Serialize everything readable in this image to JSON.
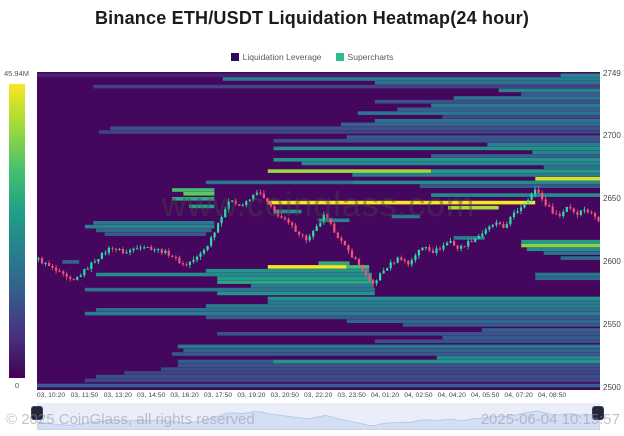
{
  "title": "Binance ETH/USDT Liquidation Heatmap(24 hour)",
  "legend": [
    {
      "label": "Liquidation Leverage",
      "color": "#2f0960"
    },
    {
      "label": "Supercharts",
      "color": "#2ebd85"
    }
  ],
  "colorbar": {
    "max_label": "45.94M",
    "min_label": "0"
  },
  "watermark": "www.coinglass.com",
  "footer": {
    "copyright": "© 2025 CoinGlass, all rights reserved",
    "timestamp": "2025-06-04 10:15:57"
  },
  "chart_data": {
    "type": "heatmap",
    "subtype": "liquidation-heatmap-with-candlesticks",
    "title": "Binance ETH/USDT Liquidation Heatmap(24 hour)",
    "legend": [
      "Liquidation Leverage",
      "Supercharts"
    ],
    "y_axis": {
      "side": "right",
      "min": 2500,
      "max": 2749,
      "ticks": [
        2749,
        2700,
        2650,
        2600,
        2550,
        2500
      ]
    },
    "x_ticks": [
      "03, 10:20",
      "03, 11:50",
      "03, 13:20",
      "03, 14:50",
      "03, 16:20",
      "03, 17:50",
      "03, 19:20",
      "03, 20:50",
      "03, 22:20",
      "03, 23:50",
      "04, 01:20",
      "04, 02:50",
      "04, 04:20",
      "04, 05:50",
      "04, 07:20",
      "04, 08:50"
    ],
    "colorbar": {
      "max_label": "45.94M",
      "min_label": "0"
    },
    "colors": {
      "background": "#45075e",
      "viridis": [
        "#440154",
        "#46327e",
        "#365c8d",
        "#277f8e",
        "#1fa187",
        "#4ac16d",
        "#a0da39",
        "#f8e621"
      ],
      "candle_up": "#2adfa4",
      "candle_down": "#f4537a",
      "nav_fill": "#d5dff4",
      "nav_line": "#bac9ea"
    },
    "candle_count": 160,
    "price_path": [
      [
        0.0,
        2602
      ],
      [
        0.02,
        2596
      ],
      [
        0.045,
        2589
      ],
      [
        0.06,
        2584
      ],
      [
        0.08,
        2592
      ],
      [
        0.1,
        2601
      ],
      [
        0.13,
        2612
      ],
      [
        0.155,
        2607
      ],
      [
        0.18,
        2613
      ],
      [
        0.21,
        2610
      ],
      [
        0.235,
        2606
      ],
      [
        0.26,
        2597
      ],
      [
        0.285,
        2604
      ],
      [
        0.3,
        2612
      ],
      [
        0.315,
        2625
      ],
      [
        0.33,
        2640
      ],
      [
        0.345,
        2650
      ],
      [
        0.36,
        2644
      ],
      [
        0.375,
        2648
      ],
      [
        0.39,
        2656
      ],
      [
        0.405,
        2649
      ],
      [
        0.42,
        2640
      ],
      [
        0.445,
        2631
      ],
      [
        0.465,
        2623
      ],
      [
        0.48,
        2617
      ],
      [
        0.5,
        2629
      ],
      [
        0.51,
        2637
      ],
      [
        0.525,
        2627
      ],
      [
        0.545,
        2613
      ],
      [
        0.565,
        2602
      ],
      [
        0.58,
        2593
      ],
      [
        0.595,
        2581
      ],
      [
        0.61,
        2590
      ],
      [
        0.625,
        2597
      ],
      [
        0.645,
        2604
      ],
      [
        0.66,
        2598
      ],
      [
        0.675,
        2607
      ],
      [
        0.69,
        2613
      ],
      [
        0.705,
        2608
      ],
      [
        0.72,
        2612
      ],
      [
        0.735,
        2617
      ],
      [
        0.75,
        2610
      ],
      [
        0.765,
        2615
      ],
      [
        0.78,
        2619
      ],
      [
        0.8,
        2625
      ],
      [
        0.815,
        2631
      ],
      [
        0.83,
        2627
      ],
      [
        0.845,
        2636
      ],
      [
        0.86,
        2643
      ],
      [
        0.875,
        2651
      ],
      [
        0.89,
        2658
      ],
      [
        0.9,
        2649
      ],
      [
        0.915,
        2641
      ],
      [
        0.93,
        2636
      ],
      [
        0.945,
        2645
      ],
      [
        0.96,
        2638
      ],
      [
        0.975,
        2642
      ],
      [
        1.0,
        2634
      ]
    ],
    "heatmap_rows": [
      {
        "p": 2748,
        "s": 0.0,
        "e": 1.0,
        "v": 0.1
      },
      {
        "p": 2748,
        "s": 0.93,
        "e": 1.0,
        "v": 0.45
      },
      {
        "p": 2745,
        "s": 0.33,
        "e": 1.0,
        "v": 0.42
      },
      {
        "p": 2742,
        "s": 0.6,
        "e": 1.0,
        "v": 0.38
      },
      {
        "p": 2739,
        "s": 0.1,
        "e": 1.0,
        "v": 0.2
      },
      {
        "p": 2736,
        "s": 0.82,
        "e": 1.0,
        "v": 0.45
      },
      {
        "p": 2733,
        "s": 0.86,
        "e": 1.0,
        "v": 0.3
      },
      {
        "p": 2730,
        "s": 0.74,
        "e": 1.0,
        "v": 0.4
      },
      {
        "p": 2727,
        "s": 0.6,
        "e": 1.0,
        "v": 0.25
      },
      {
        "p": 2724,
        "s": 0.7,
        "e": 1.0,
        "v": 0.42
      },
      {
        "p": 2721,
        "s": 0.64,
        "e": 1.0,
        "v": 0.3
      },
      {
        "p": 2718,
        "s": 0.57,
        "e": 1.0,
        "v": 0.4
      },
      {
        "p": 2715,
        "s": 0.72,
        "e": 1.0,
        "v": 0.22
      },
      {
        "p": 2712,
        "s": 0.6,
        "e": 1.0,
        "v": 0.38
      },
      {
        "p": 2709,
        "s": 0.54,
        "e": 1.0,
        "v": 0.32
      },
      {
        "p": 2706,
        "s": 0.13,
        "e": 1.0,
        "v": 0.24
      },
      {
        "p": 2703,
        "s": 0.11,
        "e": 1.0,
        "v": 0.2
      },
      {
        "p": 2699,
        "s": 0.55,
        "e": 1.0,
        "v": 0.28
      },
      {
        "p": 2696,
        "s": 0.42,
        "e": 1.0,
        "v": 0.24
      },
      {
        "p": 2693,
        "s": 0.8,
        "e": 1.0,
        "v": 0.42
      },
      {
        "p": 2690,
        "s": 0.42,
        "e": 1.0,
        "v": 0.5
      },
      {
        "p": 2687,
        "s": 0.88,
        "e": 1.0,
        "v": 0.45
      },
      {
        "p": 2684,
        "s": 0.7,
        "e": 1.0,
        "v": 0.32
      },
      {
        "p": 2681,
        "s": 0.42,
        "e": 1.0,
        "v": 0.52
      },
      {
        "p": 2678,
        "s": 0.47,
        "e": 1.0,
        "v": 0.45
      },
      {
        "p": 2675,
        "s": 0.9,
        "e": 1.0,
        "v": 0.38
      },
      {
        "p": 2672,
        "s": 0.41,
        "e": 0.7,
        "v": 0.85
      },
      {
        "p": 2672,
        "s": 0.7,
        "e": 1.0,
        "v": 0.55
      },
      {
        "p": 2669,
        "s": 0.56,
        "e": 1.0,
        "v": 0.42
      },
      {
        "p": 2666,
        "s": 0.885,
        "e": 1.0,
        "v": 0.95
      },
      {
        "p": 2663,
        "s": 0.3,
        "e": 0.56,
        "v": 0.38
      },
      {
        "p": 2663,
        "s": 0.56,
        "e": 1.0,
        "v": 0.48
      },
      {
        "p": 2660,
        "s": 0.68,
        "e": 1.0,
        "v": 0.28
      },
      {
        "p": 2657,
        "s": 0.24,
        "e": 0.315,
        "v": 0.7
      },
      {
        "p": 2654,
        "s": 0.26,
        "e": 0.315,
        "v": 0.75
      },
      {
        "p": 2653,
        "s": 0.7,
        "e": 1.0,
        "v": 0.48
      },
      {
        "p": 2650,
        "s": 0.24,
        "e": 0.315,
        "v": 0.62
      },
      {
        "p": 2647,
        "s": 0.41,
        "e": 0.885,
        "v": 1.0
      },
      {
        "p": 2644,
        "s": 0.27,
        "e": 0.315,
        "v": 0.58
      },
      {
        "p": 2643,
        "s": 0.73,
        "e": 0.82,
        "v": 0.88
      },
      {
        "p": 2640,
        "s": 0.42,
        "e": 0.47,
        "v": 0.5
      },
      {
        "p": 2636,
        "s": 0.63,
        "e": 0.68,
        "v": 0.4
      },
      {
        "p": 2633,
        "s": 0.5,
        "e": 0.555,
        "v": 0.45
      },
      {
        "p": 2631,
        "s": 0.1,
        "e": 0.315,
        "v": 0.4
      },
      {
        "p": 2628,
        "s": 0.085,
        "e": 0.315,
        "v": 0.45
      },
      {
        "p": 2625,
        "s": 0.105,
        "e": 0.31,
        "v": 0.34
      },
      {
        "p": 2622,
        "s": 0.12,
        "e": 0.3,
        "v": 0.28
      },
      {
        "p": 2619,
        "s": 0.74,
        "e": 0.795,
        "v": 0.42
      },
      {
        "p": 2616,
        "s": 0.86,
        "e": 1.0,
        "v": 0.55
      },
      {
        "p": 2613,
        "s": 0.86,
        "e": 1.0,
        "v": 0.82
      },
      {
        "p": 2610,
        "s": 0.87,
        "e": 1.0,
        "v": 0.48
      },
      {
        "p": 2607,
        "s": 0.9,
        "e": 1.0,
        "v": 0.38
      },
      {
        "p": 2603,
        "s": 0.93,
        "e": 1.0,
        "v": 0.35
      },
      {
        "p": 2600,
        "s": 0.045,
        "e": 0.075,
        "v": 0.32
      },
      {
        "p": 2599,
        "s": 0.5,
        "e": 0.555,
        "v": 0.62
      },
      {
        "p": 2596,
        "s": 0.41,
        "e": 0.55,
        "v": 1.0
      },
      {
        "p": 2596,
        "s": 0.55,
        "e": 0.59,
        "v": 0.7
      },
      {
        "p": 2593,
        "s": 0.3,
        "e": 0.59,
        "v": 0.52
      },
      {
        "p": 2590,
        "s": 0.105,
        "e": 0.595,
        "v": 0.48
      },
      {
        "p": 2590,
        "s": 0.885,
        "e": 1.0,
        "v": 0.4
      },
      {
        "p": 2587,
        "s": 0.32,
        "e": 0.595,
        "v": 0.55
      },
      {
        "p": 2587,
        "s": 0.885,
        "e": 1.0,
        "v": 0.34
      },
      {
        "p": 2584,
        "s": 0.32,
        "e": 0.597,
        "v": 0.6
      },
      {
        "p": 2581,
        "s": 0.38,
        "e": 0.598,
        "v": 0.42
      },
      {
        "p": 2578,
        "s": 0.085,
        "e": 0.6,
        "v": 0.38
      },
      {
        "p": 2575,
        "s": 0.32,
        "e": 0.6,
        "v": 0.52
      },
      {
        "p": 2571,
        "s": 0.41,
        "e": 1.0,
        "v": 0.5
      },
      {
        "p": 2568,
        "s": 0.41,
        "e": 1.0,
        "v": 0.4
      },
      {
        "p": 2565,
        "s": 0.3,
        "e": 1.0,
        "v": 0.44
      },
      {
        "p": 2562,
        "s": 0.105,
        "e": 1.0,
        "v": 0.36
      },
      {
        "p": 2559,
        "s": 0.085,
        "e": 1.0,
        "v": 0.42
      },
      {
        "p": 2556,
        "s": 0.3,
        "e": 1.0,
        "v": 0.28
      },
      {
        "p": 2553,
        "s": 0.55,
        "e": 1.0,
        "v": 0.33
      },
      {
        "p": 2550,
        "s": 0.65,
        "e": 1.0,
        "v": 0.28
      },
      {
        "p": 2546,
        "s": 0.79,
        "e": 1.0,
        "v": 0.3
      },
      {
        "p": 2543,
        "s": 0.32,
        "e": 1.0,
        "v": 0.26
      },
      {
        "p": 2540,
        "s": 0.72,
        "e": 1.0,
        "v": 0.28
      },
      {
        "p": 2537,
        "s": 0.6,
        "e": 1.0,
        "v": 0.24
      },
      {
        "p": 2533,
        "s": 0.25,
        "e": 1.0,
        "v": 0.4
      },
      {
        "p": 2530,
        "s": 0.26,
        "e": 1.0,
        "v": 0.32
      },
      {
        "p": 2527,
        "s": 0.24,
        "e": 1.0,
        "v": 0.28
      },
      {
        "p": 2524,
        "s": 0.71,
        "e": 1.0,
        "v": 0.45
      },
      {
        "p": 2521,
        "s": 0.25,
        "e": 0.42,
        "v": 0.28
      },
      {
        "p": 2521,
        "s": 0.42,
        "e": 1.0,
        "v": 0.52
      },
      {
        "p": 2518,
        "s": 0.25,
        "e": 1.0,
        "v": 0.26
      },
      {
        "p": 2515,
        "s": 0.22,
        "e": 1.0,
        "v": 0.23
      },
      {
        "p": 2512,
        "s": 0.155,
        "e": 1.0,
        "v": 0.21
      },
      {
        "p": 2509,
        "s": 0.105,
        "e": 1.0,
        "v": 0.24
      },
      {
        "p": 2506,
        "s": 0.085,
        "e": 1.0,
        "v": 0.21
      },
      {
        "p": 2502,
        "s": 0.0,
        "e": 1.0,
        "v": 0.3
      }
    ]
  }
}
